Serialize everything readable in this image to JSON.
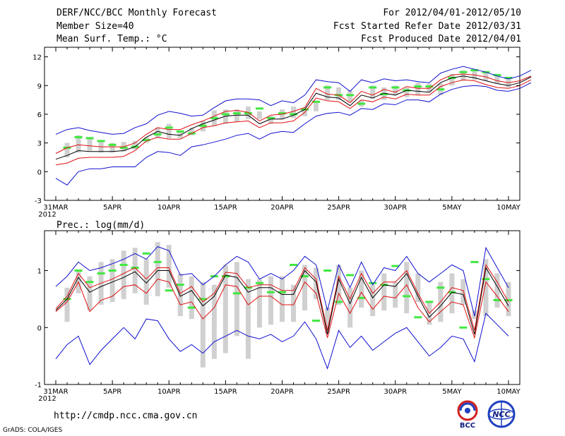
{
  "header": {
    "left": [
      "DERF/NCC/BCC Monthly Forecast",
      "Member Size=40",
      "Mean Surf. Temp.: °C"
    ],
    "right": [
      "For 2012/04/01-2012/05/10",
      "Fcst Started Refer Date 2012/03/31",
      "Fcst Produced Date 2012/04/01"
    ]
  },
  "prec_label": "Prec.: log(mm/d)",
  "footer": {
    "url": "http://cmdp.ncc.cma.gov.cn",
    "grads": "GrADS: COLA/IGES",
    "logo_bcc": "BCC",
    "logo_ncc": "NCC"
  },
  "colors": {
    "ensemble_mean": "#000000",
    "spread": "#e01010",
    "extreme": "#1010d0",
    "box": "#d0d0d0",
    "marker": "#40e840"
  },
  "chart_data": [
    {
      "type": "line",
      "title": "Mean Surf. Temp.: °C",
      "x_start": "31MAR",
      "year_label": "2012",
      "xticks": [
        "31MAR",
        "5APR",
        "10APR",
        "15APR",
        "20APR",
        "25APR",
        "30APR",
        "5MAY",
        "10MAY"
      ],
      "xtick_days": [
        0,
        5,
        10,
        15,
        20,
        25,
        30,
        35,
        40
      ],
      "ylim": [
        -3,
        13
      ],
      "yticks": [
        -3,
        0,
        3,
        6,
        9,
        12
      ],
      "ytick_labels": [
        "-3",
        "0",
        "3",
        "6",
        "9",
        "12"
      ],
      "series": [
        {
          "name": "upper",
          "color": "blue",
          "values": [
            3.9,
            4.4,
            4.6,
            4.3,
            4.1,
            3.9,
            4.0,
            4.6,
            5.0,
            5.9,
            6.3,
            6.1,
            5.8,
            5.9,
            6.7,
            7.4,
            7.6,
            7.6,
            7.5,
            6.9,
            7.4,
            7.2,
            8.0,
            9.6,
            9.4,
            9.3,
            8.4,
            9.6,
            9.3,
            9.7,
            9.5,
            9.6,
            9.4,
            9.3,
            10.3,
            10.7,
            11.0,
            10.7,
            10.4,
            10.0,
            9.7,
            10.0,
            10.6
          ]
        },
        {
          "name": "upper_spread",
          "color": "red",
          "values": [
            1.9,
            2.5,
            2.8,
            2.7,
            2.6,
            2.6,
            2.6,
            3.0,
            3.9,
            4.6,
            4.4,
            4.4,
            4.9,
            5.3,
            5.8,
            6.3,
            6.4,
            6.2,
            5.3,
            5.9,
            6.0,
            6.3,
            6.7,
            8.7,
            8.1,
            8.0,
            7.2,
            8.4,
            8.0,
            8.6,
            8.3,
            8.9,
            8.7,
            8.7,
            9.6,
            10.1,
            10.2,
            10.1,
            9.9,
            9.5,
            9.3,
            9.5,
            10.0
          ]
        },
        {
          "name": "ensemble_mean",
          "color": "black",
          "values": [
            1.3,
            1.7,
            2.2,
            2.1,
            2.1,
            2.1,
            2.2,
            2.6,
            3.6,
            4.2,
            3.9,
            3.8,
            4.5,
            5.0,
            5.4,
            5.8,
            5.9,
            5.9,
            5.0,
            5.5,
            5.5,
            5.9,
            6.5,
            8.2,
            7.8,
            7.7,
            6.9,
            8.0,
            7.7,
            8.2,
            8.0,
            8.5,
            8.4,
            8.3,
            9.3,
            9.8,
            10.0,
            9.8,
            9.5,
            9.2,
            9.0,
            9.3,
            9.9
          ]
        },
        {
          "name": "lower_spread",
          "color": "red",
          "values": [
            0.7,
            0.9,
            1.4,
            1.5,
            1.5,
            1.5,
            1.6,
            2.2,
            3.2,
            3.6,
            3.4,
            3.4,
            4.0,
            4.6,
            4.8,
            5.1,
            5.2,
            5.3,
            4.6,
            5.1,
            5.1,
            5.3,
            6.2,
            7.7,
            7.4,
            7.3,
            6.6,
            7.5,
            7.3,
            7.8,
            7.6,
            8.1,
            8.0,
            8.0,
            8.9,
            9.3,
            9.6,
            9.5,
            9.1,
            8.8,
            8.7,
            9.0,
            9.6
          ]
        },
        {
          "name": "lower",
          "color": "blue",
          "values": [
            -0.7,
            -1.4,
            0.0,
            0.3,
            0.3,
            0.5,
            0.5,
            0.5,
            1.5,
            2.1,
            2.0,
            1.7,
            2.6,
            2.8,
            3.1,
            3.4,
            3.8,
            4.0,
            3.4,
            4.0,
            4.2,
            4.1,
            5.0,
            5.8,
            6.1,
            6.2,
            5.9,
            6.6,
            6.5,
            7.1,
            7.0,
            7.5,
            7.5,
            7.3,
            8.1,
            8.6,
            8.9,
            9.0,
            8.9,
            8.5,
            8.4,
            8.7,
            9.3
          ]
        }
      ],
      "boxes": {
        "days": [
          1,
          2,
          3,
          4,
          5,
          6,
          7,
          8,
          9,
          10,
          11,
          12,
          13,
          14,
          15,
          16,
          17,
          18,
          19,
          20,
          21,
          22,
          23,
          24,
          25,
          26,
          27,
          28,
          29,
          30,
          31,
          32,
          33,
          34,
          35,
          36,
          37,
          38,
          39,
          40
        ],
        "low": [
          1.5,
          2.0,
          2.2,
          2.0,
          2.0,
          2.1,
          2.3,
          3.0,
          3.5,
          3.5,
          3.5,
          3.8,
          4.2,
          4.8,
          5.0,
          5.2,
          5.5,
          5.5,
          5.0,
          5.5,
          5.6,
          5.8,
          6.3,
          7.5,
          7.5,
          7.3,
          6.8,
          7.6,
          7.5,
          8.0,
          7.8,
          8.0,
          8.3,
          8.0,
          9.0,
          9.5,
          9.6,
          9.5,
          9.2,
          8.8
        ],
        "high": [
          3.0,
          3.8,
          3.6,
          3.2,
          3.0,
          3.1,
          3.2,
          3.6,
          4.6,
          5.0,
          4.3,
          4.6,
          5.3,
          6.4,
          6.5,
          6.5,
          6.8,
          6.3,
          5.8,
          6.5,
          6.8,
          6.5,
          7.2,
          9.0,
          8.8,
          8.5,
          7.5,
          9.0,
          8.8,
          9.0,
          8.8,
          9.3,
          9.2,
          9.2,
          10.2,
          10.6,
          10.7,
          10.5,
          10.0,
          9.8
        ],
        "marker": [
          2.5,
          3.6,
          3.5,
          3.2,
          2.8,
          2.5,
          2.6,
          3.3,
          3.9,
          4.6,
          4.2,
          4.0,
          4.8,
          5.6,
          6.0,
          6.1,
          6.1,
          6.6,
          5.6,
          6.1,
          6.0,
          6.5,
          7.3,
          8.8,
          8.0,
          8.0,
          7.1,
          8.8,
          8.1,
          8.8,
          8.5,
          8.9,
          8.9,
          8.6,
          9.8,
          10.4,
          10.6,
          10.4,
          10.1,
          9.8
        ]
      }
    },
    {
      "type": "line",
      "title": "Prec.: log(mm/d)",
      "x_start": "31MAR",
      "year_label": "2012",
      "xticks": [
        "31MAR",
        "5APR",
        "10APR",
        "15APR",
        "20APR",
        "25APR",
        "30APR",
        "5MAY",
        "10MAY"
      ],
      "xtick_days": [
        0,
        5,
        10,
        15,
        20,
        25,
        30,
        35,
        40
      ],
      "ylim": [
        -1,
        1.7
      ],
      "yticks": [
        -1,
        0,
        1
      ],
      "ytick_labels": [
        "-1",
        "0",
        "1"
      ],
      "series": [
        {
          "name": "upper",
          "color": "blue",
          "values": [
            0.72,
            0.9,
            1.15,
            1.0,
            1.05,
            1.12,
            1.2,
            1.3,
            1.2,
            1.42,
            1.35,
            0.92,
            0.95,
            0.75,
            0.9,
            1.1,
            1.25,
            1.15,
            0.85,
            0.95,
            0.85,
            1.0,
            1.25,
            1.1,
            0.3,
            1.1,
            0.7,
            1.15,
            0.75,
            1.05,
            1.0,
            1.25,
            0.95,
            0.8,
            0.95,
            1.1,
            1.0,
            0.2,
            1.4,
            1.05,
            0.7
          ]
        },
        {
          "name": "upper_spread",
          "color": "red",
          "values": [
            0.33,
            0.55,
            0.95,
            0.7,
            0.78,
            0.85,
            0.95,
            1.05,
            0.85,
            1.05,
            1.05,
            0.6,
            0.72,
            0.45,
            0.6,
            0.97,
            0.95,
            0.7,
            0.75,
            0.75,
            0.65,
            0.65,
            1.05,
            0.85,
            -0.05,
            0.9,
            0.5,
            0.95,
            0.6,
            0.8,
            0.8,
            1.0,
            0.6,
            0.25,
            0.45,
            0.7,
            0.65,
            -0.05,
            1.1,
            0.8,
            0.45
          ]
        },
        {
          "name": "ensemble_mean",
          "color": "black",
          "values": [
            0.3,
            0.5,
            0.88,
            0.62,
            0.72,
            0.8,
            0.88,
            0.98,
            0.78,
            1.0,
            1.0,
            0.55,
            0.65,
            0.38,
            0.55,
            0.92,
            0.88,
            0.62,
            0.7,
            0.7,
            0.58,
            0.58,
            1.0,
            0.8,
            -0.12,
            0.85,
            0.42,
            0.88,
            0.52,
            0.75,
            0.72,
            0.95,
            0.55,
            0.18,
            0.38,
            0.62,
            0.58,
            -0.12,
            1.05,
            0.72,
            0.38
          ]
        },
        {
          "name": "lower_spread",
          "color": "red",
          "values": [
            0.28,
            0.45,
            0.8,
            0.28,
            0.48,
            0.55,
            0.72,
            0.75,
            0.6,
            0.85,
            0.8,
            0.4,
            0.45,
            0.15,
            0.35,
            0.75,
            0.72,
            0.4,
            0.55,
            0.55,
            0.4,
            0.4,
            0.8,
            0.6,
            -0.18,
            0.6,
            0.25,
            0.62,
            0.32,
            0.55,
            0.52,
            0.75,
            0.35,
            0.1,
            0.28,
            0.45,
            0.4,
            -0.18,
            0.8,
            0.55,
            0.28
          ]
        },
        {
          "name": "lower",
          "color": "blue",
          "values": [
            -0.55,
            -0.3,
            -0.15,
            -0.65,
            -0.4,
            -0.2,
            0.0,
            -0.2,
            0.15,
            0.12,
            -0.2,
            -0.42,
            -0.3,
            -0.45,
            -0.25,
            -0.15,
            -0.05,
            -0.15,
            -0.2,
            -0.12,
            -0.25,
            -0.15,
            0.1,
            -0.2,
            -0.72,
            -0.05,
            -0.35,
            -0.15,
            -0.4,
            -0.25,
            -0.1,
            0.0,
            -0.25,
            -0.5,
            -0.35,
            -0.15,
            -0.2,
            -0.6,
            0.25,
            0.05,
            -0.15
          ]
        }
      ],
      "boxes": {
        "days": [
          1,
          2,
          3,
          4,
          5,
          6,
          7,
          8,
          9,
          10,
          11,
          12,
          13,
          14,
          15,
          16,
          17,
          18,
          19,
          20,
          21,
          22,
          23,
          24,
          25,
          26,
          27,
          28,
          29,
          30,
          31,
          32,
          33,
          34,
          35,
          36,
          37,
          38,
          39,
          40
        ],
        "low": [
          0.1,
          0.6,
          0.3,
          0.4,
          0.45,
          0.5,
          0.6,
          0.4,
          0.55,
          0.7,
          0.2,
          0.15,
          -0.7,
          -0.55,
          -0.45,
          -0.15,
          -0.55,
          0.0,
          0.05,
          0.1,
          0.1,
          0.3,
          0.5,
          -0.1,
          0.4,
          0.0,
          0.35,
          0.2,
          0.3,
          0.35,
          0.25,
          0.45,
          0.05,
          0.1,
          0.25,
          0.4,
          0.15,
          0.2,
          0.35,
          0.2
        ],
        "high": [
          0.7,
          1.0,
          0.9,
          1.15,
          1.2,
          1.35,
          1.4,
          1.2,
          1.5,
          1.45,
          0.95,
          0.9,
          0.8,
          0.75,
          1.1,
          1.15,
          0.85,
          0.85,
          0.9,
          0.9,
          0.75,
          1.1,
          1.05,
          0.35,
          1.1,
          0.7,
          1.0,
          0.75,
          0.95,
          0.8,
          1.15,
          0.95,
          0.45,
          0.8,
          0.95,
          0.85,
          0.3,
          1.2,
          0.95,
          0.8
        ],
        "marker": [
          0.5,
          1.0,
          0.8,
          0.95,
          1.0,
          1.1,
          1.05,
          1.3,
          1.15,
          0.65,
          0.75,
          0.35,
          0.5,
          0.9,
          0.9,
          0.6,
          0.7,
          0.78,
          0.62,
          0.62,
          1.1,
          0.9,
          0.12,
          1.0,
          0.45,
          0.92,
          0.52,
          0.78,
          0.75,
          1.08,
          0.55,
          0.18,
          0.45,
          0.7,
          0.62,
          0.0,
          1.15,
          0.85,
          0.48,
          0.48
        ]
      }
    }
  ]
}
